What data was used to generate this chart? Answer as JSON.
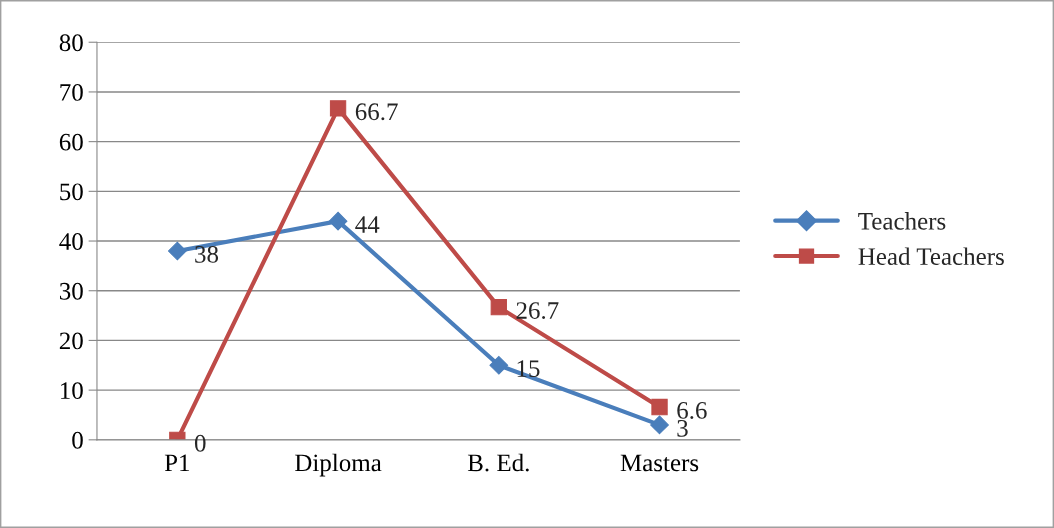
{
  "chart_data": {
    "type": "line",
    "categories": [
      "P1",
      "Diploma",
      "B. Ed.",
      "Masters"
    ],
    "series": [
      {
        "name": "Teachers",
        "color": "#4a7ebb",
        "marker": "diamond",
        "values": [
          38,
          44,
          15,
          3
        ]
      },
      {
        "name": "Head Teachers",
        "color": "#be4b48",
        "marker": "square",
        "values": [
          0,
          66.7,
          26.7,
          6.6
        ]
      }
    ],
    "ylim": [
      0,
      80
    ],
    "yticks": [
      0,
      10,
      20,
      30,
      40,
      50,
      60,
      70,
      80
    ],
    "grid": "y",
    "legend": "right",
    "data_labels": true,
    "line_style": "solid"
  }
}
